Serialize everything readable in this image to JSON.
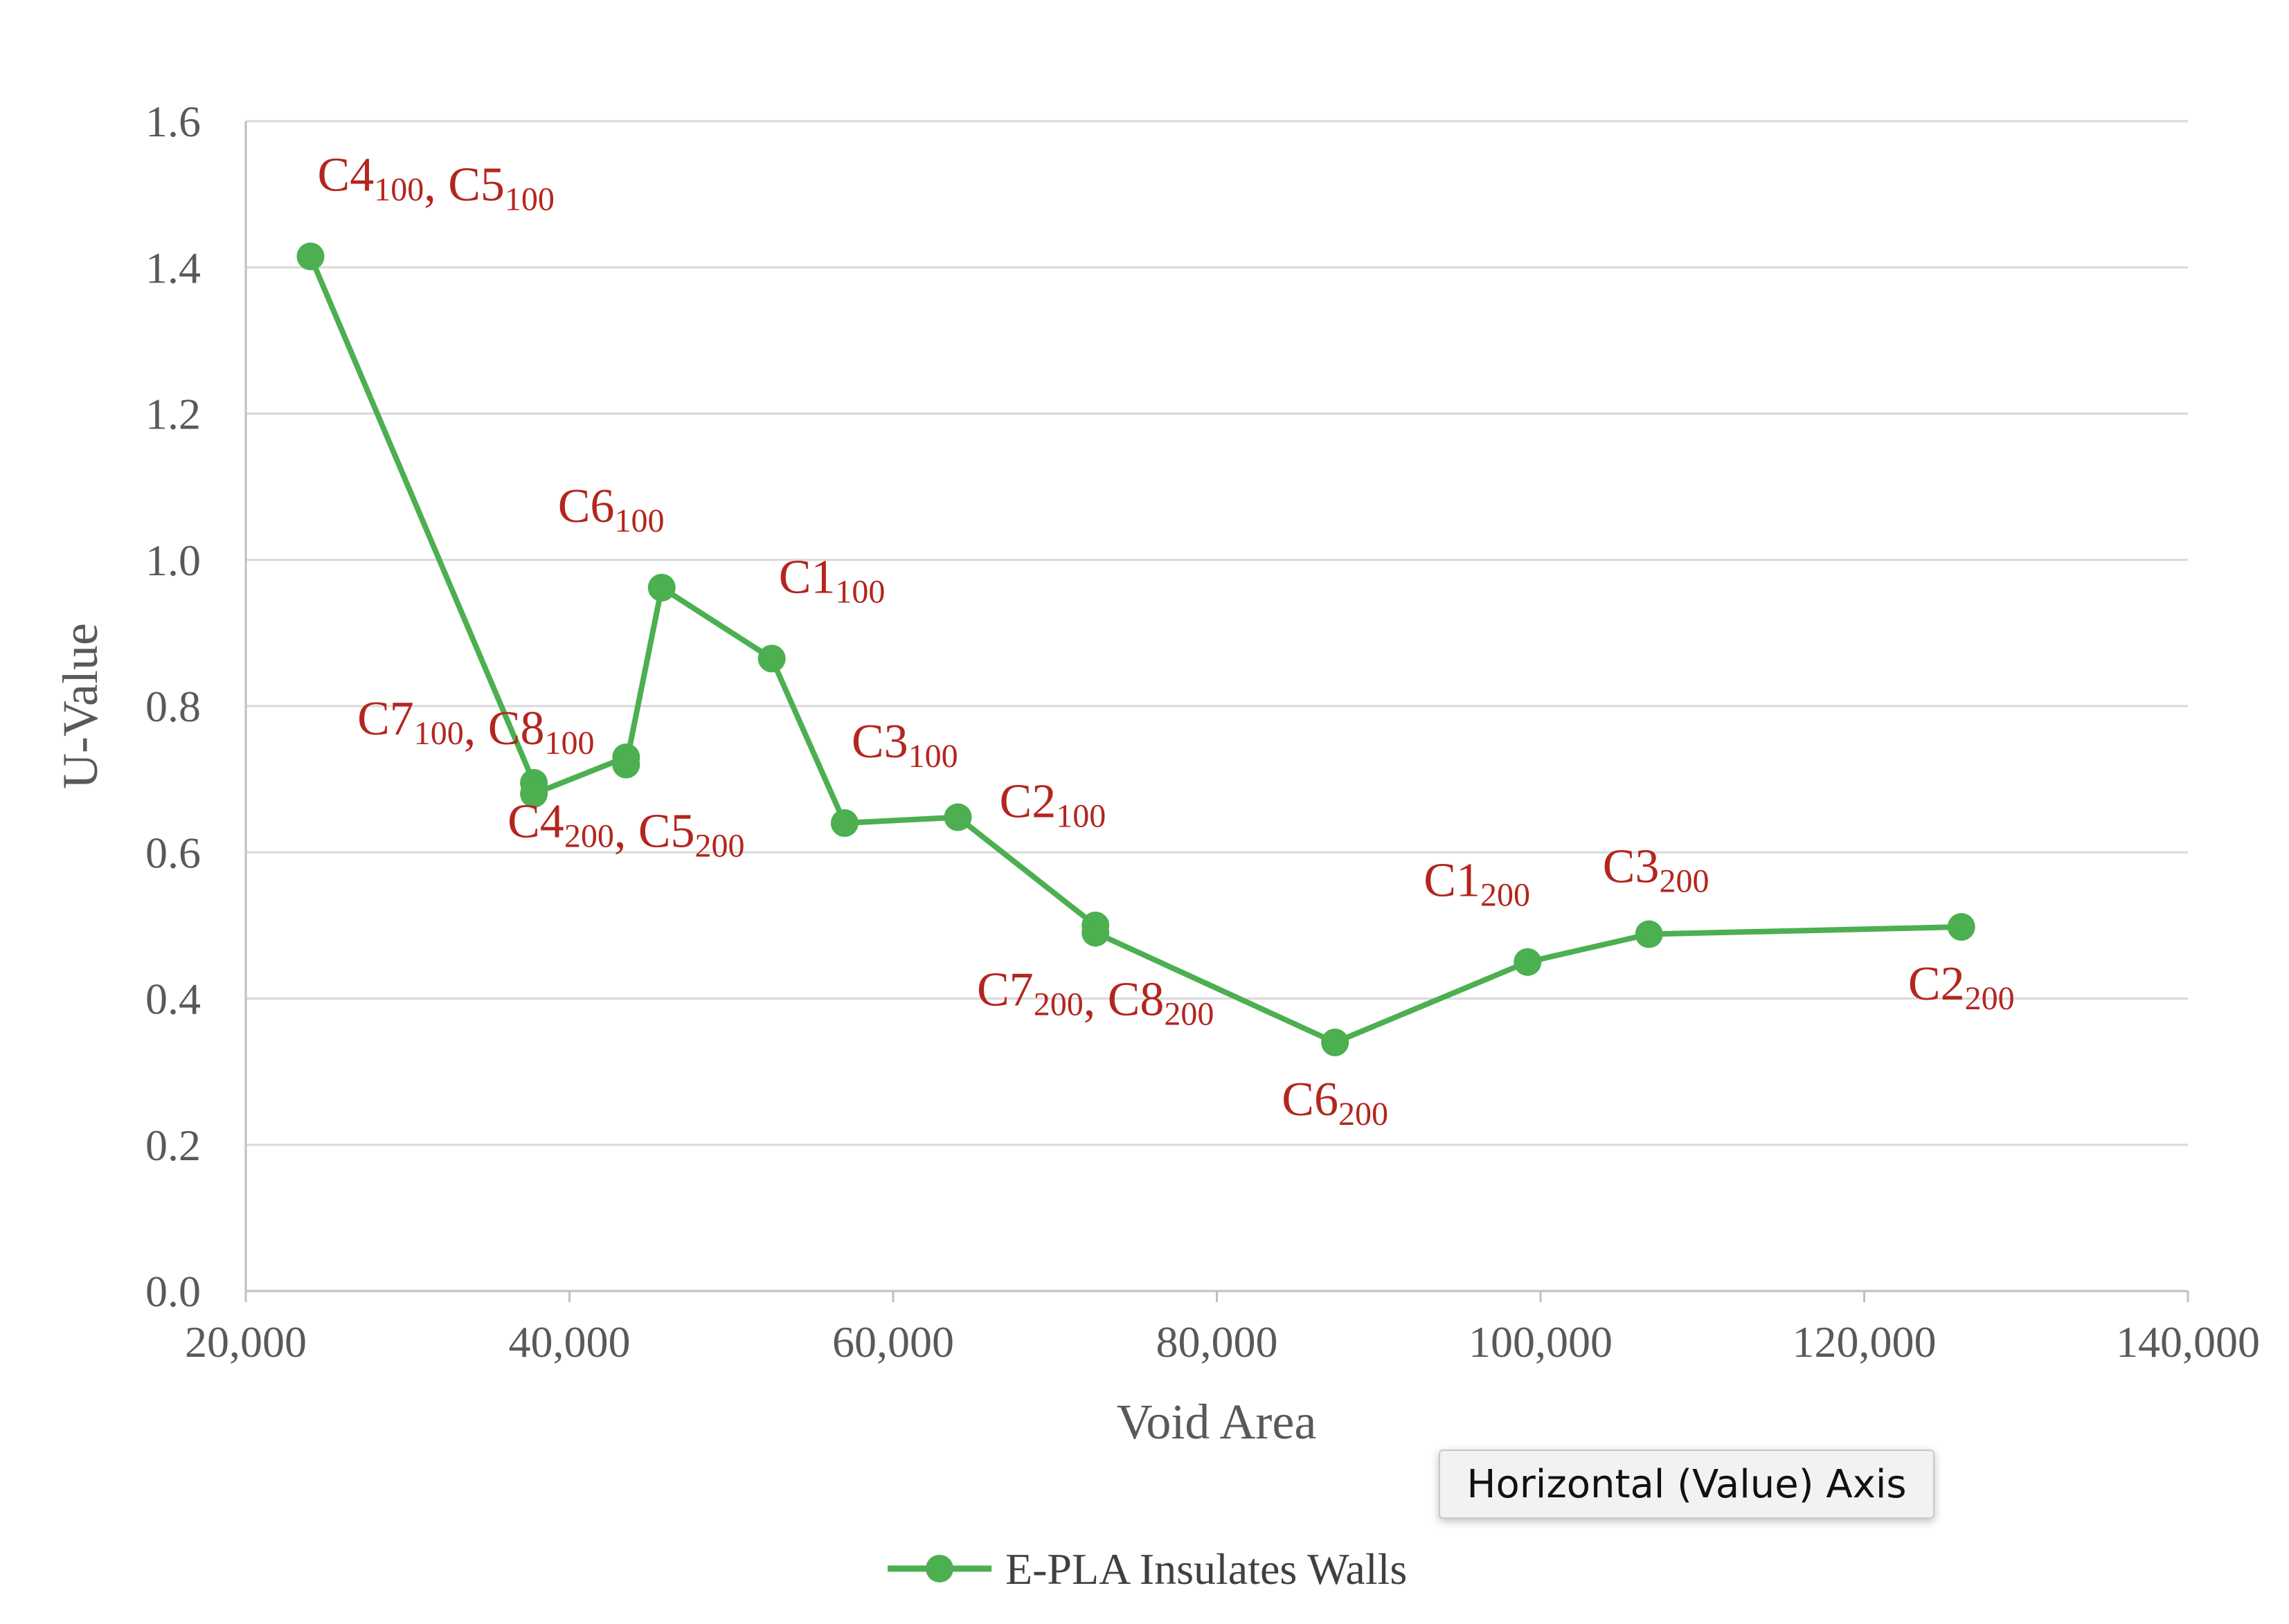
{
  "chart_data": {
    "type": "line",
    "title": "",
    "xlabel": "Void Area",
    "ylabel": "U-Value",
    "xlim": [
      20000,
      140000
    ],
    "ylim": [
      0,
      1.6
    ],
    "xticks": [
      20000,
      40000,
      60000,
      80000,
      100000,
      120000,
      140000
    ],
    "yticks": [
      0.0,
      0.2,
      0.4,
      0.6,
      0.8,
      1.0,
      1.2,
      1.4,
      1.6
    ],
    "xtick_labels": [
      "20,000",
      "40,000",
      "60,000",
      "80,000",
      "100,000",
      "120,000",
      "140,000"
    ],
    "ytick_labels": [
      "0.0",
      "0.2",
      "0.4",
      "0.6",
      "0.8",
      "1.0",
      "1.2",
      "1.4",
      "1.6"
    ],
    "grid": true,
    "legend": "bottom",
    "series": [
      {
        "name": "E-PLA Insulates Walls",
        "color": "#4caf50",
        "points": [
          {
            "x": 24000,
            "y": 1.415
          },
          {
            "x": 37800,
            "y": 0.695
          },
          {
            "x": 37800,
            "y": 0.68
          },
          {
            "x": 43500,
            "y": 0.73
          },
          {
            "x": 43500,
            "y": 0.72
          },
          {
            "x": 45700,
            "y": 0.962
          },
          {
            "x": 52500,
            "y": 0.865
          },
          {
            "x": 57000,
            "y": 0.64
          },
          {
            "x": 64000,
            "y": 0.648
          },
          {
            "x": 72500,
            "y": 0.5
          },
          {
            "x": 72500,
            "y": 0.49
          },
          {
            "x": 87300,
            "y": 0.34
          },
          {
            "x": 99200,
            "y": 0.45
          },
          {
            "x": 106700,
            "y": 0.488
          },
          {
            "x": 126000,
            "y": 0.498
          }
        ]
      }
    ],
    "annotations": [
      {
        "parts": [
          [
            "C4",
            "100"
          ],
          [
            ", C5",
            "100"
          ]
        ],
        "x": 24000,
        "y": 1.415,
        "pos": "above-right"
      },
      {
        "parts": [
          [
            "C7",
            "100"
          ],
          [
            ", C8",
            "100"
          ]
        ],
        "x": 37800,
        "y": 0.695,
        "pos": "upper-left"
      },
      {
        "parts": [
          [
            "C4",
            "200"
          ],
          [
            ", C5",
            "200"
          ]
        ],
        "x": 43500,
        "y": 0.72,
        "pos": "below"
      },
      {
        "parts": [
          [
            "C6",
            "100"
          ]
        ],
        "x": 45700,
        "y": 0.962,
        "pos": "above-left"
      },
      {
        "parts": [
          [
            "C1",
            "100"
          ]
        ],
        "x": 52500,
        "y": 0.865,
        "pos": "above-right"
      },
      {
        "parts": [
          [
            "C3",
            "100"
          ]
        ],
        "x": 57000,
        "y": 0.64,
        "pos": "above-right"
      },
      {
        "parts": [
          [
            "C2",
            "100"
          ]
        ],
        "x": 64000,
        "y": 0.648,
        "pos": "right"
      },
      {
        "parts": [
          [
            "C7",
            "200"
          ],
          [
            ", C8",
            "200"
          ]
        ],
        "x": 72500,
        "y": 0.49,
        "pos": "below"
      },
      {
        "parts": [
          [
            "C6",
            "200"
          ]
        ],
        "x": 87300,
        "y": 0.34,
        "pos": "below"
      },
      {
        "parts": [
          [
            "C1",
            "200"
          ]
        ],
        "x": 99200,
        "y": 0.45,
        "pos": "above-left"
      },
      {
        "parts": [
          [
            "C3",
            "200"
          ]
        ],
        "x": 106700,
        "y": 0.488,
        "pos": "above"
      },
      {
        "parts": [
          [
            "C2",
            "200"
          ]
        ],
        "x": 126000,
        "y": 0.498,
        "pos": "below"
      }
    ]
  },
  "tooltip": {
    "text": "Horizontal (Value) Axis"
  }
}
